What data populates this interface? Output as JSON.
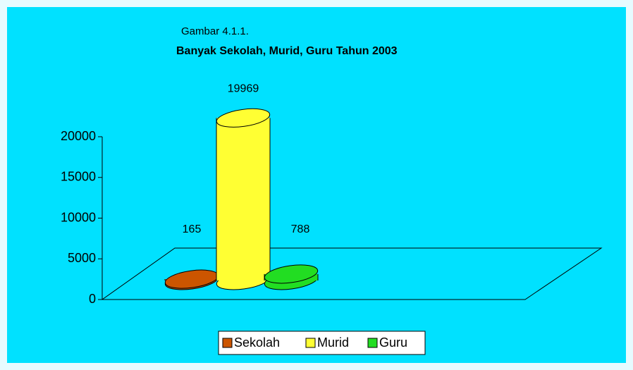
{
  "chart_data": {
    "type": "bar3d",
    "title": "Banyak Sekolah, Murid, Guru Tahun 2003",
    "subtitle": "Gambar 4.1.1.",
    "categories": [
      null
    ],
    "series": [
      {
        "name": "Sekolah",
        "color": "#cc5500",
        "values": [
          165
        ]
      },
      {
        "name": "Murid",
        "color": "#ffff33",
        "values": [
          19969
        ]
      },
      {
        "name": "Guru",
        "color": "#22dd22",
        "values": [
          788
        ]
      }
    ],
    "ylim": [
      0,
      20000
    ],
    "yticks": [
      0,
      5000,
      10000,
      15000,
      20000
    ],
    "legend": "bottom"
  }
}
